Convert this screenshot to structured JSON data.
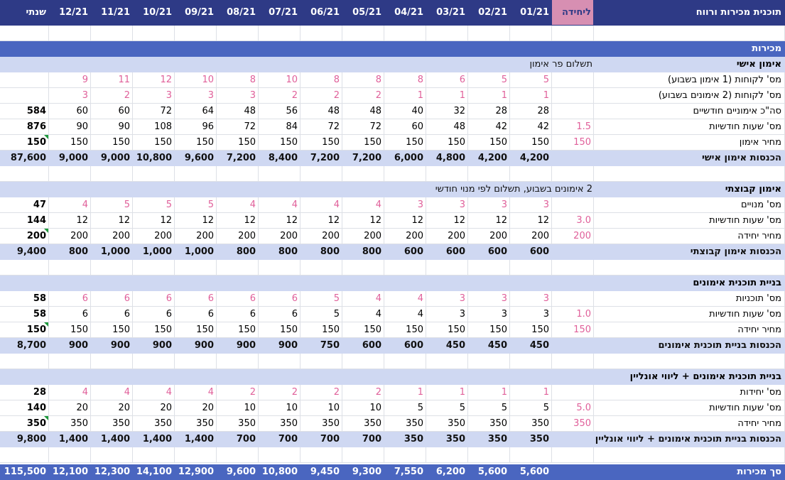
{
  "header": {
    "title": "תוכנית מכירות ורווח",
    "unit": "ליחידה",
    "annual": "שנתי",
    "months": [
      "01/21",
      "02/21",
      "03/21",
      "04/21",
      "05/21",
      "06/21",
      "07/21",
      "08/21",
      "09/21",
      "10/21",
      "11/21",
      "12/21"
    ]
  },
  "sales_label": "מכירות",
  "sections": [
    {
      "name": "אימון אישי",
      "note": "תשלום פר אימון",
      "rows": [
        {
          "label": "מס' לקוחות (1 אימון בשבוע)",
          "unit": "",
          "months": [
            "5",
            "5",
            "6",
            "8",
            "8",
            "8",
            "10",
            "8",
            "10",
            "12",
            "11",
            "9"
          ],
          "annual": "",
          "style": "pink"
        },
        {
          "label": "מס' לקוחות (2 אימונים בשבוע)",
          "unit": "",
          "months": [
            "1",
            "1",
            "1",
            "1",
            "2",
            "2",
            "2",
            "3",
            "3",
            "3",
            "2",
            "3"
          ],
          "annual": "",
          "style": "pink"
        },
        {
          "label": "סה\"כ אימוניים חודשיים",
          "unit": "",
          "months": [
            "28",
            "28",
            "32",
            "40",
            "48",
            "48",
            "56",
            "48",
            "64",
            "72",
            "60",
            "60"
          ],
          "annual": "584",
          "style": "plain"
        },
        {
          "label": "מס' שעות חודשיות",
          "unit": "1.5",
          "months": [
            "42",
            "42",
            "48",
            "60",
            "72",
            "72",
            "84",
            "72",
            "96",
            "108",
            "90",
            "90"
          ],
          "annual": "876",
          "style": "plain"
        },
        {
          "label": "מחיר אימון",
          "unit": "150",
          "months": [
            "150",
            "150",
            "150",
            "150",
            "150",
            "150",
            "150",
            "150",
            "150",
            "150",
            "150",
            "150"
          ],
          "annual": "150",
          "style": "plain"
        }
      ],
      "total_label": "הכנסות אימון אישי",
      "total_months": [
        "4,200",
        "4,200",
        "4,800",
        "6,000",
        "7,200",
        "7,200",
        "8,400",
        "7,200",
        "9,600",
        "10,800",
        "9,000",
        "9,000"
      ],
      "total_annual": "87,600"
    },
    {
      "name": "אימון קבוצתי",
      "note": "2 אימונים בשבוע, תשלום לפי מנוי חודשי",
      "rows": [
        {
          "label": "מס' מנויים",
          "unit": "",
          "months": [
            "3",
            "3",
            "3",
            "3",
            "4",
            "4",
            "4",
            "4",
            "5",
            "5",
            "5",
            "4"
          ],
          "annual": "47",
          "style": "pink"
        },
        {
          "label": "מס' שעות חודשיות",
          "unit": "3.0",
          "months": [
            "12",
            "12",
            "12",
            "12",
            "12",
            "12",
            "12",
            "12",
            "12",
            "12",
            "12",
            "12"
          ],
          "annual": "144",
          "style": "plain"
        },
        {
          "label": "מחיר יחידה",
          "unit": "200",
          "months": [
            "200",
            "200",
            "200",
            "200",
            "200",
            "200",
            "200",
            "200",
            "200",
            "200",
            "200",
            "200"
          ],
          "annual": "200",
          "style": "plain"
        }
      ],
      "total_label": "הכנסות אימון קבוצתי",
      "total_months": [
        "600",
        "600",
        "600",
        "600",
        "800",
        "800",
        "800",
        "800",
        "1,000",
        "1,000",
        "1,000",
        "800"
      ],
      "total_annual": "9,400"
    },
    {
      "name": "בניית תוכנית אימונים",
      "note": "",
      "rows": [
        {
          "label": "מס' תוכניות",
          "unit": "",
          "months": [
            "3",
            "3",
            "3",
            "4",
            "4",
            "5",
            "6",
            "6",
            "6",
            "6",
            "6",
            "6"
          ],
          "annual": "58",
          "style": "pink"
        },
        {
          "label": "מס' שעות חודשיות",
          "unit": "1.0",
          "months": [
            "3",
            "3",
            "3",
            "4",
            "4",
            "5",
            "6",
            "6",
            "6",
            "6",
            "6",
            "6"
          ],
          "annual": "58",
          "style": "plain"
        },
        {
          "label": "מחיר יחידה",
          "unit": "150",
          "months": [
            "150",
            "150",
            "150",
            "150",
            "150",
            "150",
            "150",
            "150",
            "150",
            "150",
            "150",
            "150"
          ],
          "annual": "150",
          "style": "plain"
        }
      ],
      "total_label": "הכנסות בניית תוכנית אימונים",
      "total_months": [
        "450",
        "450",
        "450",
        "600",
        "600",
        "750",
        "900",
        "900",
        "900",
        "900",
        "900",
        "900"
      ],
      "total_annual": "8,700"
    },
    {
      "name": "בניית תוכנית אימונים + ליווי אונליין",
      "note": "",
      "rows": [
        {
          "label": "מס' יחידות",
          "unit": "",
          "months": [
            "1",
            "1",
            "1",
            "1",
            "2",
            "2",
            "2",
            "2",
            "4",
            "4",
            "4",
            "4"
          ],
          "annual": "28",
          "style": "pink"
        },
        {
          "label": "מס' שעות חודשיות",
          "unit": "5.0",
          "months": [
            "5",
            "5",
            "5",
            "5",
            "10",
            "10",
            "10",
            "10",
            "20",
            "20",
            "20",
            "20"
          ],
          "annual": "140",
          "style": "plain"
        },
        {
          "label": "מחיר יחידה",
          "unit": "350",
          "months": [
            "350",
            "350",
            "350",
            "350",
            "350",
            "350",
            "350",
            "350",
            "350",
            "350",
            "350",
            "350"
          ],
          "annual": "350",
          "style": "plain"
        }
      ],
      "total_label": "הכנסות בניית תוכנית אימונים + ליווי אונליין",
      "total_months": [
        "350",
        "350",
        "350",
        "350",
        "700",
        "700",
        "700",
        "700",
        "1,400",
        "1,400",
        "1,400",
        "1,400"
      ],
      "total_annual": "9,800"
    }
  ],
  "grand_total": {
    "label": "סך מכירות",
    "months": [
      "5,600",
      "5,600",
      "6,200",
      "7,550",
      "9,300",
      "9,450",
      "10,800",
      "9,600",
      "12,900",
      "14,100",
      "12,300",
      "12,100"
    ],
    "annual": "115,500"
  },
  "colors": {
    "header": "#2e3a86",
    "section": "#4a66c0",
    "subtotal": "#cfd8f2",
    "input": "#e0609a",
    "unit_header": "#d78fb2"
  }
}
